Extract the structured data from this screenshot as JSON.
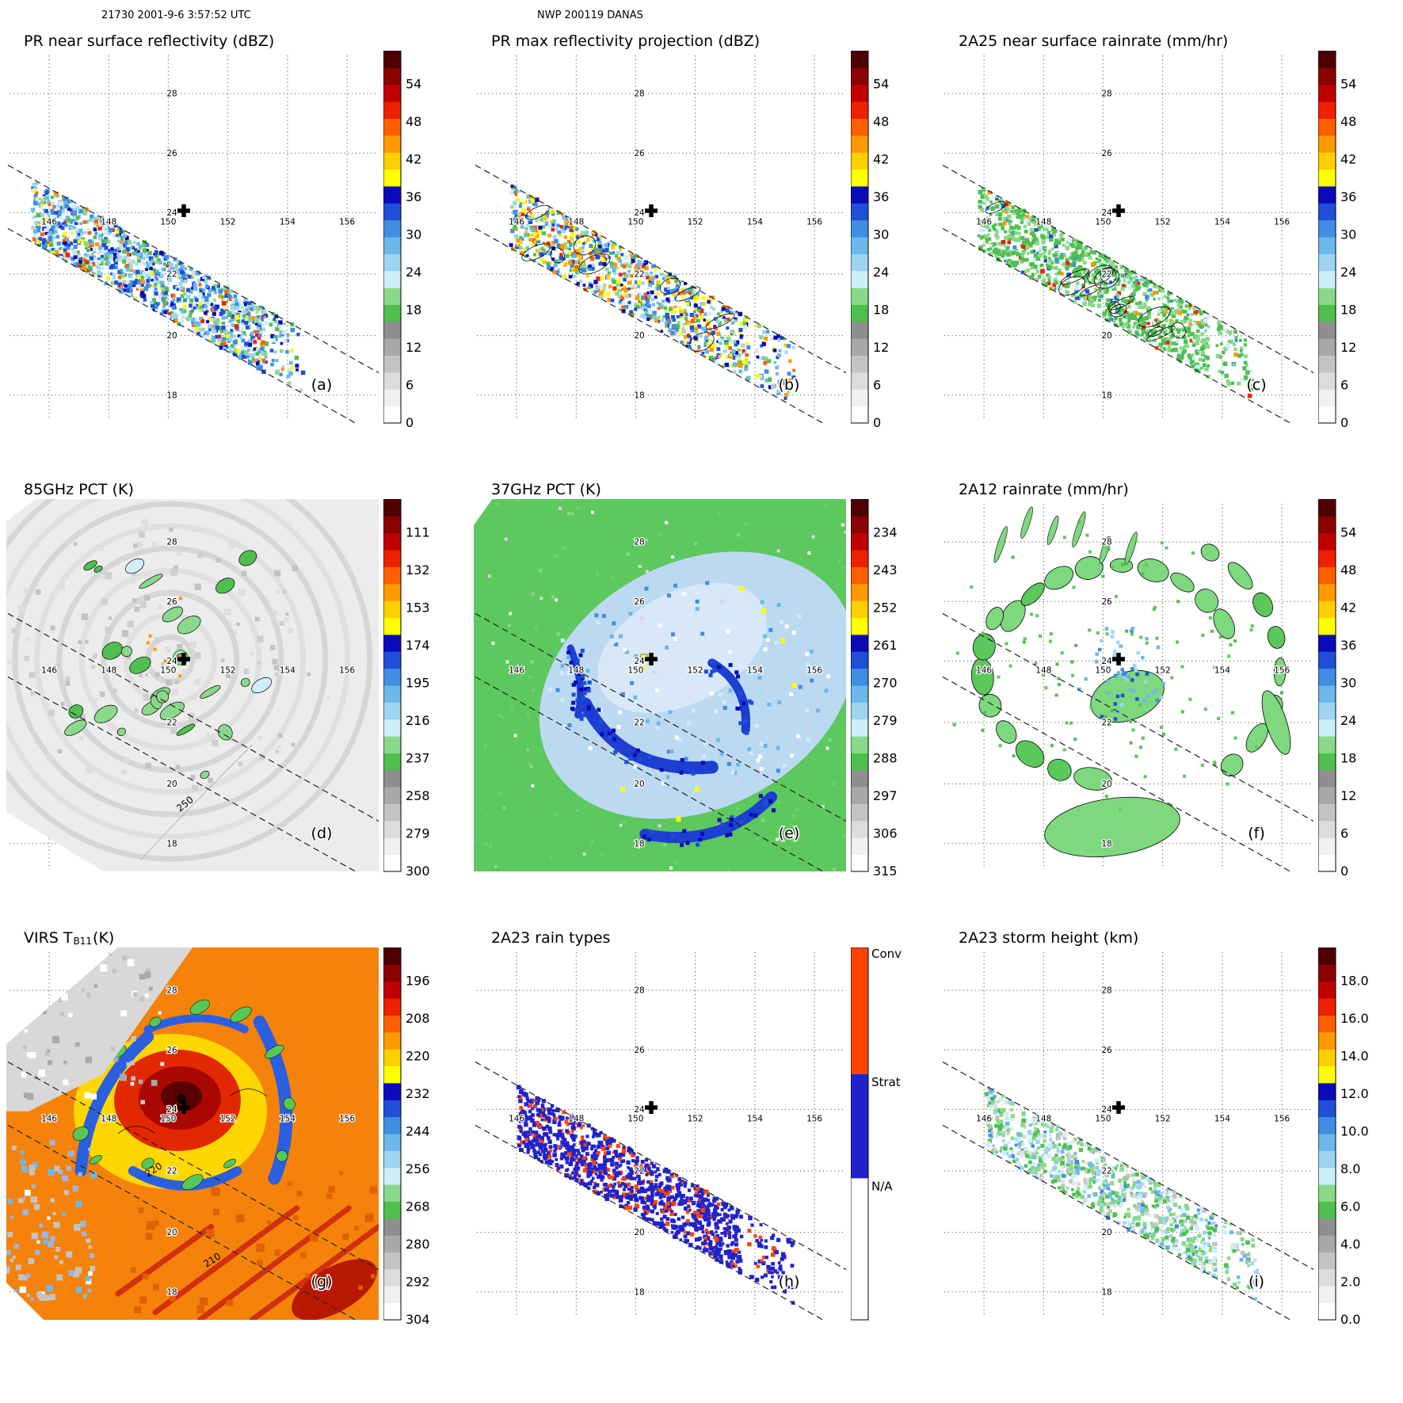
{
  "header": {
    "left": "21730 2001-9-6 3:57:52 UTC",
    "center": "NWP 200119 DANAS"
  },
  "axes": {
    "lon_labels": [
      "146",
      "148",
      "150",
      "152",
      "154",
      "156"
    ],
    "lat_labels": [
      "28",
      "26",
      "24",
      "22",
      "20",
      "18"
    ]
  },
  "colors": {
    "palette": [
      "#ffffff",
      "#f0f0f0",
      "#dcdcdc",
      "#c3c3c3",
      "#a9a9a9",
      "#8f8f8f",
      "#4fbf4f",
      "#8ad88a",
      "#cfeef9",
      "#9ed4f2",
      "#6cb8ea",
      "#3f8ee2",
      "#1f4fd8",
      "#0a0ab8",
      "#ffff00",
      "#ffcf00",
      "#ff9900",
      "#ff5f00",
      "#ee2000",
      "#c00000",
      "#8b0000",
      "#4e0000"
    ],
    "rain_conv": "#ff4400",
    "rain_strat": "#2222cc",
    "rain_na": "#ffffff"
  },
  "chart_data": [
    {
      "id": "a",
      "type": "heatmap",
      "title": {
        "text": "PR near surface reflectivity (dBZ)",
        "sub": "",
        "tail": ""
      },
      "letter": "(a)",
      "colorbar_labels": [
        "54",
        "48",
        "42",
        "36",
        "30",
        "24",
        "18",
        "12",
        "6",
        "0"
      ],
      "annotations": []
    },
    {
      "id": "b",
      "type": "heatmap",
      "title": {
        "text": "PR max reflectivity projection (dBZ)",
        "sub": "",
        "tail": ""
      },
      "letter": "(b)",
      "colorbar_labels": [
        "54",
        "48",
        "42",
        "36",
        "30",
        "24",
        "18",
        "12",
        "6",
        "0"
      ],
      "annotations": []
    },
    {
      "id": "c",
      "type": "heatmap",
      "title": {
        "text": "2A25 near surface rainrate (mm/hr)",
        "sub": "",
        "tail": ""
      },
      "letter": "(c)",
      "colorbar_labels": [
        "54",
        "48",
        "42",
        "36",
        "30",
        "24",
        "18",
        "12",
        "6",
        "0"
      ],
      "annotations": []
    },
    {
      "id": "d",
      "type": "heatmap",
      "title": {
        "text": "85GHz PCT (K)",
        "sub": "",
        "tail": ""
      },
      "letter": "(d)",
      "colorbar_labels": [
        "111",
        "132",
        "153",
        "174",
        "195",
        "216",
        "237",
        "258",
        "279",
        "300"
      ],
      "annotations": [
        "250"
      ]
    },
    {
      "id": "e",
      "type": "heatmap",
      "title": {
        "text": "37GHz PCT (K)",
        "sub": "",
        "tail": ""
      },
      "letter": "(e)",
      "colorbar_labels": [
        "234",
        "243",
        "252",
        "261",
        "270",
        "279",
        "288",
        "297",
        "306",
        "315"
      ],
      "annotations": []
    },
    {
      "id": "f",
      "type": "heatmap",
      "title": {
        "text": "2A12 rainrate (mm/hr)",
        "sub": "",
        "tail": ""
      },
      "letter": "(f)",
      "colorbar_labels": [
        "54",
        "48",
        "42",
        "36",
        "30",
        "24",
        "18",
        "12",
        "6",
        "0"
      ],
      "annotations": []
    },
    {
      "id": "g",
      "type": "heatmap",
      "title": {
        "text": "VIRS T",
        "sub": "B11",
        "tail": " (K)"
      },
      "letter": "(g)",
      "colorbar_labels": [
        "196",
        "208",
        "220",
        "232",
        "244",
        "256",
        "268",
        "280",
        "292",
        "304"
      ],
      "annotations": [
        "220",
        "210"
      ]
    },
    {
      "id": "h",
      "type": "heatmap",
      "title": {
        "text": "2A23 rain types",
        "sub": "",
        "tail": ""
      },
      "letter": "(h)",
      "colorbar_labels": [
        "Conv",
        "Strat",
        "N/A"
      ],
      "colorbar_type": "categorical",
      "annotations": []
    },
    {
      "id": "i",
      "type": "heatmap",
      "title": {
        "text": "2A23 storm height (km)",
        "sub": "",
        "tail": ""
      },
      "letter": "(i)",
      "colorbar_labels": [
        "18.0",
        "16.0",
        "14.0",
        "12.0",
        "10.0",
        "8.0",
        "6.0",
        "4.0",
        "2.0",
        "0.0"
      ],
      "annotations": []
    }
  ]
}
